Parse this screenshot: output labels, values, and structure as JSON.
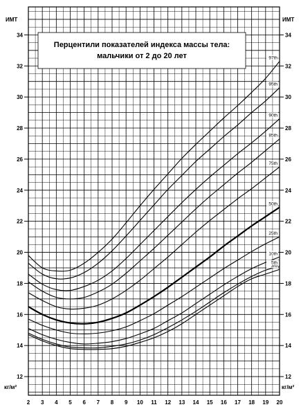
{
  "chart_data": {
    "type": "line",
    "title": "Перцентили показателей индекса массы тела: мальчики от 2 до 20 лет",
    "title_lines": [
      "Перцентили показателей индекса массы тела:",
      "мальчики от 2 до 20 лет"
    ],
    "ylabel": "ИМТ",
    "yunit": "кг/м²",
    "x_ticks": [
      "2",
      "3",
      "4",
      "5",
      "6",
      "7",
      "8",
      "9",
      "10",
      "11",
      "12",
      "13",
      "14",
      "15",
      "16",
      "17",
      "18",
      "19",
      "20"
    ],
    "y_ticks": [
      "12",
      "14",
      "16",
      "18",
      "20",
      "22",
      "24",
      "26",
      "28",
      "30",
      "32",
      "34"
    ],
    "xlim": [
      2,
      20
    ],
    "ylim": [
      10.8,
      35.8
    ],
    "grid": true,
    "x": [
      2,
      3,
      4,
      5,
      6,
      7,
      8,
      9,
      10,
      11,
      12,
      13,
      14,
      15,
      16,
      17,
      18,
      19,
      20
    ],
    "series": [
      {
        "name": "3rd",
        "bold": false,
        "values": [
          14.7,
          14.3,
          14.0,
          13.8,
          13.75,
          13.75,
          13.8,
          13.95,
          14.2,
          14.5,
          14.9,
          15.4,
          16.0,
          16.6,
          17.2,
          17.8,
          18.3,
          18.6,
          18.9
        ]
      },
      {
        "name": "5th",
        "bold": false,
        "values": [
          14.8,
          14.4,
          14.1,
          13.9,
          13.85,
          13.85,
          13.95,
          14.1,
          14.35,
          14.7,
          15.15,
          15.65,
          16.2,
          16.8,
          17.4,
          17.95,
          18.45,
          18.85,
          19.1
        ]
      },
      {
        "name": "10th",
        "bold": false,
        "values": [
          15.1,
          14.7,
          14.4,
          14.2,
          14.1,
          14.15,
          14.25,
          14.45,
          14.75,
          15.1,
          15.6,
          16.1,
          16.7,
          17.3,
          17.9,
          18.45,
          18.95,
          19.35,
          19.7
        ]
      },
      {
        "name": "25th",
        "bold": false,
        "values": [
          15.7,
          15.3,
          15.0,
          14.8,
          14.75,
          14.8,
          14.95,
          15.2,
          15.6,
          16.05,
          16.6,
          17.15,
          17.75,
          18.35,
          18.95,
          19.5,
          20.05,
          20.55,
          21.0
        ]
      },
      {
        "name": "50th",
        "bold": true,
        "values": [
          16.5,
          16.0,
          15.65,
          15.45,
          15.4,
          15.5,
          15.75,
          16.1,
          16.6,
          17.15,
          17.75,
          18.4,
          19.05,
          19.7,
          20.4,
          21.05,
          21.7,
          22.3,
          22.9
        ]
      },
      {
        "name": "75th",
        "bold": false,
        "values": [
          17.4,
          16.9,
          16.5,
          16.35,
          16.4,
          16.6,
          17.0,
          17.55,
          18.2,
          18.95,
          19.7,
          20.5,
          21.3,
          22.05,
          22.75,
          23.45,
          24.1,
          24.8,
          25.5
        ]
      },
      {
        "name": "85th",
        "bold": false,
        "values": [
          18.1,
          17.5,
          17.1,
          17.0,
          17.1,
          17.45,
          17.95,
          18.65,
          19.45,
          20.25,
          21.1,
          21.95,
          22.8,
          23.6,
          24.35,
          25.1,
          25.8,
          26.55,
          27.3
        ]
      },
      {
        "name": "90th",
        "bold": false,
        "values": [
          18.6,
          17.95,
          17.6,
          17.55,
          17.8,
          18.2,
          18.8,
          19.6,
          20.5,
          21.4,
          22.3,
          23.2,
          24.05,
          24.85,
          25.6,
          26.35,
          27.05,
          27.8,
          28.6
        ]
      },
      {
        "name": "95th",
        "bold": false,
        "values": [
          19.3,
          18.6,
          18.3,
          18.35,
          18.7,
          19.3,
          20.1,
          21.05,
          22.05,
          23.05,
          24.05,
          24.95,
          25.85,
          26.65,
          27.45,
          28.2,
          29.0,
          29.75,
          30.6
        ]
      },
      {
        "name": "97th",
        "bold": false,
        "values": [
          19.8,
          19.0,
          18.8,
          18.85,
          19.3,
          20.0,
          20.85,
          21.9,
          23.0,
          24.05,
          25.05,
          26.05,
          26.95,
          27.8,
          28.65,
          29.45,
          30.3,
          31.2,
          32.3
        ]
      }
    ]
  }
}
